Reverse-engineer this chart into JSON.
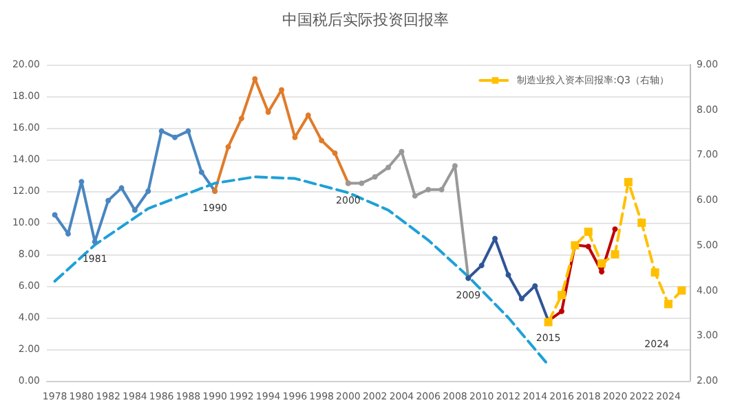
{
  "chart_data": {
    "type": "line",
    "title": "中国税后实际投资回报率",
    "xlim": [
      1977.4,
      2025.6
    ],
    "xticks": [
      1978,
      1980,
      1982,
      1984,
      1986,
      1988,
      1990,
      1992,
      1994,
      1996,
      1998,
      2000,
      2002,
      2004,
      2006,
      2008,
      2010,
      2012,
      2014,
      2016,
      2018,
      2020,
      2022,
      2024
    ],
    "ylim": [
      0,
      20
    ],
    "yticks": [
      {
        "value": 0,
        "label": "0.00"
      },
      {
        "value": 2,
        "label": "2.00"
      },
      {
        "value": 4,
        "label": "4.00"
      },
      {
        "value": 6,
        "label": "6.00"
      },
      {
        "value": 8,
        "label": "8.00"
      },
      {
        "value": 10,
        "label": "10.00"
      },
      {
        "value": 12,
        "label": "12.00"
      },
      {
        "value": 14,
        "label": "14.00"
      },
      {
        "value": 16,
        "label": "16.00"
      },
      {
        "value": 18,
        "label": "18.00"
      },
      {
        "value": 20,
        "label": "20.00"
      }
    ],
    "y2lim": [
      2,
      9
    ],
    "y2ticks": [
      {
        "value": 2,
        "label": "2.00"
      },
      {
        "value": 3,
        "label": "3.00"
      },
      {
        "value": 4,
        "label": "4.00"
      },
      {
        "value": 5,
        "label": "5.00"
      },
      {
        "value": 6,
        "label": "6.00"
      },
      {
        "value": 7,
        "label": "7.00"
      },
      {
        "value": 8,
        "label": "8.00"
      },
      {
        "value": 9,
        "label": "9.00"
      }
    ],
    "grid": "y",
    "legend": "top right",
    "series": [
      {
        "color": "#4a86c0",
        "marker": "circle",
        "x": [
          1978,
          1979,
          1980,
          1981,
          1982,
          1983,
          1984,
          1985,
          1986,
          1987,
          1988,
          1989,
          1990
        ],
        "values": [
          10.5,
          9.3,
          12.6,
          8.8,
          11.4,
          12.2,
          10.8,
          12.0,
          15.8,
          15.4,
          15.8,
          13.2,
          12.0
        ]
      },
      {
        "color": "#e07b2a",
        "marker": "circle",
        "x": [
          1990,
          1991,
          1992,
          1993,
          1994,
          1995,
          1996,
          1997,
          1998,
          1999,
          2000
        ],
        "values": [
          12.0,
          14.8,
          16.6,
          19.1,
          17.0,
          18.4,
          15.4,
          16.8,
          15.2,
          14.4,
          12.5
        ]
      },
      {
        "color": "#999999",
        "marker": "circle",
        "x": [
          2000,
          2001,
          2002,
          2003,
          2004,
          2005,
          2006,
          2007,
          2008,
          2009
        ],
        "values": [
          12.5,
          12.5,
          12.9,
          13.5,
          14.5,
          11.7,
          12.1,
          12.1,
          13.6,
          6.5
        ]
      },
      {
        "color": "#2f5597",
        "marker": "circle",
        "x": [
          2009,
          2010,
          2011,
          2012,
          2013,
          2014,
          2015
        ],
        "values": [
          6.5,
          7.3,
          9.0,
          6.7,
          5.2,
          6.0,
          3.8
        ]
      },
      {
        "color": "#c00000",
        "marker": "circle",
        "x": [
          2015,
          2016,
          2017,
          2018,
          2019,
          2020
        ],
        "values": [
          3.8,
          4.4,
          8.6,
          8.5,
          6.9,
          9.6
        ]
      },
      {
        "type": "line",
        "color": "#1ea0d8",
        "marker": "none",
        "line_style": "dashed",
        "x": [
          1978,
          1981,
          1985,
          1990,
          1993,
          1996,
          2000,
          2003,
          2006,
          2009,
          2012,
          2015
        ],
        "values": [
          6.3,
          8.6,
          10.9,
          12.5,
          12.9,
          12.8,
          11.9,
          10.8,
          8.9,
          6.6,
          4.0,
          1.0
        ]
      },
      {
        "name": "制造业投入资本回报率:Q3（右轴）",
        "axis": "y2",
        "color": "#ffc000",
        "marker": "square",
        "line_style": "dashed",
        "x": [
          2015,
          2016,
          2017,
          2018,
          2019,
          2020,
          2021,
          2022,
          2023,
          2024,
          2025
        ],
        "values": [
          3.3,
          3.9,
          5.0,
          5.3,
          4.6,
          4.8,
          6.4,
          5.5,
          4.4,
          3.7,
          4.0
        ]
      }
    ],
    "annotations": [
      {
        "text": "1981",
        "x": 1981,
        "y": 8.8
      },
      {
        "text": "1990",
        "x": 1990,
        "y": 12.0
      },
      {
        "text": "2000",
        "x": 2000,
        "y": 12.5
      },
      {
        "text": "2009",
        "x": 2009,
        "y": 6.5
      },
      {
        "text": "2015",
        "x": 2015,
        "y": 3.8
      },
      "2024"
    ]
  }
}
